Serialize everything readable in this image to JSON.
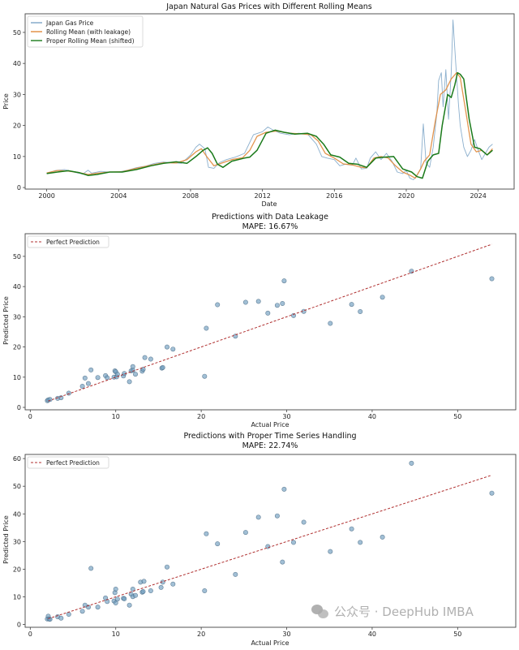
{
  "chart_data": [
    {
      "type": "line",
      "title": "Japan Natural Gas Prices with Different Rolling Means",
      "xlabel": "Date",
      "ylabel": "Price",
      "xlim": [
        1998.8,
        2026.0
      ],
      "ylim": [
        -0.5,
        56
      ],
      "xticks": [
        2000,
        2004,
        2008,
        2012,
        2016,
        2020,
        2024
      ],
      "yticks": [
        0,
        10,
        20,
        30,
        40,
        50
      ],
      "legend_position": "top-left",
      "grid": false,
      "series": [
        {
          "name": "Japan Gas Price",
          "color": "#7ea6c8",
          "x": [
            2000.0,
            2000.5,
            2001.0,
            2001.5,
            2002.0,
            2002.3,
            2002.5,
            2003.0,
            2003.5,
            2004.0,
            2004.5,
            2005.0,
            2005.5,
            2006.0,
            2006.5,
            2007.0,
            2007.5,
            2008.0,
            2008.3,
            2008.5,
            2008.8,
            2009.0,
            2009.3,
            2009.6,
            2010.0,
            2010.5,
            2011.0,
            2011.5,
            2012.0,
            2012.3,
            2012.6,
            2013.0,
            2013.5,
            2014.0,
            2014.5,
            2015.0,
            2015.3,
            2015.6,
            2016.0,
            2016.3,
            2016.6,
            2017.0,
            2017.2,
            2017.5,
            2017.8,
            2018.0,
            2018.3,
            2018.6,
            2018.9,
            2019.2,
            2019.5,
            2019.8,
            2020.0,
            2020.2,
            2020.4,
            2020.6,
            2020.8,
            2020.95,
            2021.1,
            2021.3,
            2021.5,
            2021.7,
            2021.8,
            2021.95,
            2022.05,
            2022.2,
            2022.35,
            2022.5,
            2022.6,
            2022.75,
            2022.9,
            2023.0,
            2023.2,
            2023.4,
            2023.6,
            2023.8,
            2024.0,
            2024.2,
            2024.4,
            2024.6,
            2024.8
          ],
          "y": [
            4.6,
            5.5,
            5.8,
            5.0,
            4.3,
            5.6,
            4.6,
            5.2,
            5.0,
            5.0,
            5.6,
            6.4,
            6.9,
            7.8,
            8.2,
            8.0,
            7.8,
            10.5,
            13.0,
            14.0,
            12.5,
            6.5,
            6.2,
            8.0,
            9.0,
            9.8,
            11.0,
            17.0,
            18.0,
            19.5,
            18.5,
            17.5,
            17.0,
            17.5,
            17.3,
            14.0,
            10.0,
            9.5,
            9.0,
            7.0,
            7.5,
            7.2,
            9.5,
            6.0,
            6.2,
            9.5,
            11.5,
            9.0,
            11.0,
            8.5,
            5.0,
            4.5,
            5.5,
            3.0,
            2.5,
            4.0,
            6.0,
            20.5,
            8.0,
            6.5,
            13.0,
            24.0,
            34.5,
            37.0,
            26.0,
            38.0,
            22.0,
            37.0,
            54.0,
            40.0,
            27.0,
            20.0,
            13.0,
            10.0,
            12.0,
            15.5,
            12.0,
            9.0,
            11.0,
            13.0,
            14.0
          ]
        },
        {
          "name": "Rolling Mean (with leakage)",
          "color": "#e08a3c",
          "x": [
            2000.0,
            2000.6,
            2001.2,
            2001.8,
            2002.3,
            2002.8,
            2003.5,
            2004.2,
            2005.0,
            2005.8,
            2006.5,
            2007.2,
            2007.8,
            2008.3,
            2008.6,
            2008.9,
            2009.3,
            2009.7,
            2010.3,
            2010.9,
            2011.3,
            2011.7,
            2012.2,
            2012.8,
            2013.5,
            2014.2,
            2014.7,
            2015.1,
            2015.5,
            2016.0,
            2016.5,
            2017.0,
            2017.5,
            2017.8,
            2018.2,
            2018.6,
            2019.0,
            2019.4,
            2019.8,
            2020.2,
            2020.5,
            2020.8,
            2021.0,
            2021.3,
            2021.6,
            2021.9,
            2022.2,
            2022.5,
            2022.8,
            2023.0,
            2023.3,
            2023.6,
            2023.9,
            2024.2,
            2024.5,
            2024.8
          ],
          "y": [
            4.7,
            5.5,
            5.3,
            4.8,
            4.2,
            4.6,
            5.0,
            5.1,
            6.2,
            7.2,
            8.0,
            7.9,
            9.0,
            11.5,
            12.5,
            10.0,
            7.0,
            7.8,
            9.0,
            9.6,
            12.0,
            16.5,
            17.8,
            18.2,
            17.5,
            17.3,
            17.0,
            15.0,
            11.0,
            9.5,
            7.6,
            7.3,
            6.5,
            6.4,
            9.5,
            10.0,
            9.5,
            7.0,
            5.0,
            4.0,
            3.0,
            6.0,
            8.5,
            10.5,
            21.0,
            30.0,
            31.5,
            35.0,
            37.0,
            35.5,
            25.0,
            14.0,
            11.5,
            12.0,
            10.5,
            12.5
          ]
        },
        {
          "name": "Proper Rolling Mean (shifted)",
          "color": "#1a7a1a",
          "x": [
            2000.0,
            2000.6,
            2001.2,
            2001.8,
            2002.3,
            2002.8,
            2003.5,
            2004.2,
            2005.0,
            2005.8,
            2006.5,
            2007.2,
            2007.8,
            2008.3,
            2008.7,
            2008.95,
            2009.2,
            2009.5,
            2009.8,
            2010.3,
            2011.0,
            2011.3,
            2011.7,
            2012.2,
            2012.7,
            2013.2,
            2013.8,
            2014.5,
            2015.0,
            2015.4,
            2015.8,
            2016.3,
            2016.8,
            2017.3,
            2017.8,
            2018.3,
            2018.8,
            2019.3,
            2019.8,
            2020.3,
            2020.6,
            2020.9,
            2021.2,
            2021.5,
            2021.8,
            2022.0,
            2022.3,
            2022.5,
            2022.7,
            2022.85,
            2023.0,
            2023.2,
            2023.5,
            2023.8,
            2024.1,
            2024.5,
            2024.8
          ],
          "y": [
            4.5,
            5.0,
            5.4,
            4.8,
            3.9,
            4.2,
            5.0,
            5.0,
            5.8,
            7.0,
            7.8,
            8.3,
            7.8,
            10.0,
            12.0,
            12.8,
            11.0,
            7.5,
            6.5,
            8.5,
            9.5,
            9.8,
            12.0,
            17.5,
            18.5,
            17.8,
            17.2,
            17.5,
            16.5,
            14.0,
            10.5,
            9.8,
            7.8,
            7.5,
            6.5,
            9.5,
            9.8,
            10.0,
            6.0,
            5.0,
            3.5,
            3.0,
            8.5,
            10.5,
            11.0,
            20.0,
            30.0,
            29.0,
            33.0,
            37.0,
            36.5,
            35.0,
            22.0,
            13.0,
            12.5,
            10.5,
            12.0
          ]
        }
      ]
    },
    {
      "type": "scatter",
      "title": "Predictions with Data Leakage",
      "subtitle": "MAPE: 16.67%",
      "xlabel": "Actual Price",
      "ylabel": "Predicted Price",
      "xlim": [
        -0.6,
        56.8
      ],
      "ylim": [
        -0.8,
        57.5
      ],
      "xticks": [
        0,
        10,
        20,
        30,
        40,
        50
      ],
      "yticks": [
        0,
        10,
        20,
        30,
        40,
        50
      ],
      "legend": [
        "Perfect Prediction"
      ],
      "legend_position": "top-left",
      "reference_line": {
        "name": "Perfect Prediction",
        "x": [
          2.1,
          54.0
        ],
        "y": [
          2.1,
          54.0
        ],
        "color": "#b03030",
        "style": "dashed"
      },
      "points": {
        "color": "#6f9cbf",
        "x": [
          2.0,
          2.1,
          2.3,
          3.2,
          3.6,
          4.5,
          6.1,
          6.4,
          6.8,
          7.1,
          7.9,
          8.8,
          9.0,
          9.8,
          9.9,
          10.0,
          10.1,
          10.2,
          10.9,
          11.0,
          11.6,
          11.8,
          12.0,
          12.0,
          12.3,
          13.1,
          13.2,
          13.4,
          14.1,
          15.4,
          15.5,
          16.0,
          16.7,
          20.4,
          20.6,
          21.9,
          24.0,
          25.2,
          26.7,
          27.8,
          28.9,
          29.5,
          29.7,
          30.8,
          32.0,
          35.1,
          37.6,
          38.6,
          41.2,
          44.6,
          54.0
        ],
        "y": [
          2.2,
          2.5,
          2.6,
          3.0,
          3.2,
          4.7,
          7.0,
          9.7,
          7.9,
          12.4,
          9.9,
          10.5,
          9.8,
          10.0,
          12.1,
          11.8,
          10.1,
          11.0,
          10.4,
          11.2,
          8.5,
          12.1,
          13.5,
          12.3,
          11.0,
          12.0,
          12.6,
          16.5,
          16.0,
          13.0,
          13.2,
          20.0,
          19.3,
          10.3,
          26.2,
          34.0,
          23.6,
          34.8,
          35.1,
          31.2,
          33.8,
          34.4,
          41.9,
          30.4,
          31.8,
          27.8,
          34.1,
          31.7,
          36.5,
          45.1,
          42.6
        ]
      }
    },
    {
      "type": "scatter",
      "title": "Predictions with Proper Time Series Handling",
      "subtitle": "MAPE: 22.74%",
      "xlabel": "Actual Price",
      "ylabel": "Predicted Price",
      "xlim": [
        -0.6,
        56.8
      ],
      "ylim": [
        -1.0,
        61.5
      ],
      "xticks": [
        0,
        10,
        20,
        30,
        40,
        50
      ],
      "yticks": [
        0,
        10,
        20,
        30,
        40,
        50,
        60
      ],
      "legend": [
        "Perfect Prediction"
      ],
      "legend_position": "top-left",
      "reference_line": {
        "name": "Perfect Prediction",
        "x": [
          2.1,
          54.0
        ],
        "y": [
          2.1,
          54.0
        ],
        "color": "#b03030",
        "style": "dashed"
      },
      "points": {
        "color": "#6f9cbf",
        "x": [
          2.0,
          2.1,
          2.2,
          2.3,
          3.2,
          3.6,
          4.5,
          6.1,
          6.4,
          6.8,
          7.1,
          7.9,
          8.8,
          9.0,
          9.8,
          9.9,
          10.0,
          10.0,
          10.2,
          10.9,
          11.0,
          11.6,
          11.8,
          12.0,
          12.0,
          12.3,
          12.9,
          13.1,
          13.2,
          13.3,
          14.1,
          15.3,
          15.5,
          16.0,
          16.7,
          20.4,
          20.6,
          21.9,
          24.0,
          25.2,
          26.7,
          27.8,
          28.9,
          29.5,
          29.7,
          30.8,
          32.0,
          35.1,
          37.6,
          38.6,
          41.2,
          44.6,
          54.0
        ],
        "y": [
          2.0,
          3.0,
          2.0,
          1.9,
          2.8,
          2.3,
          3.7,
          4.8,
          7.0,
          6.3,
          20.3,
          6.3,
          9.6,
          8.3,
          8.5,
          11.5,
          12.8,
          7.8,
          9.2,
          9.5,
          9.3,
          7.0,
          11.0,
          12.8,
          10.1,
          10.5,
          15.3,
          11.7,
          11.9,
          15.6,
          12.2,
          13.4,
          15.3,
          20.8,
          14.6,
          12.2,
          32.8,
          29.2,
          18.1,
          33.3,
          38.8,
          28.2,
          39.3,
          22.6,
          48.9,
          29.7,
          37.0,
          26.4,
          34.6,
          29.7,
          31.6,
          58.3,
          47.5
        ]
      }
    }
  ],
  "watermark": {
    "text": "公众号 · DeepHub IMBA",
    "icon": "wechat-icon"
  }
}
